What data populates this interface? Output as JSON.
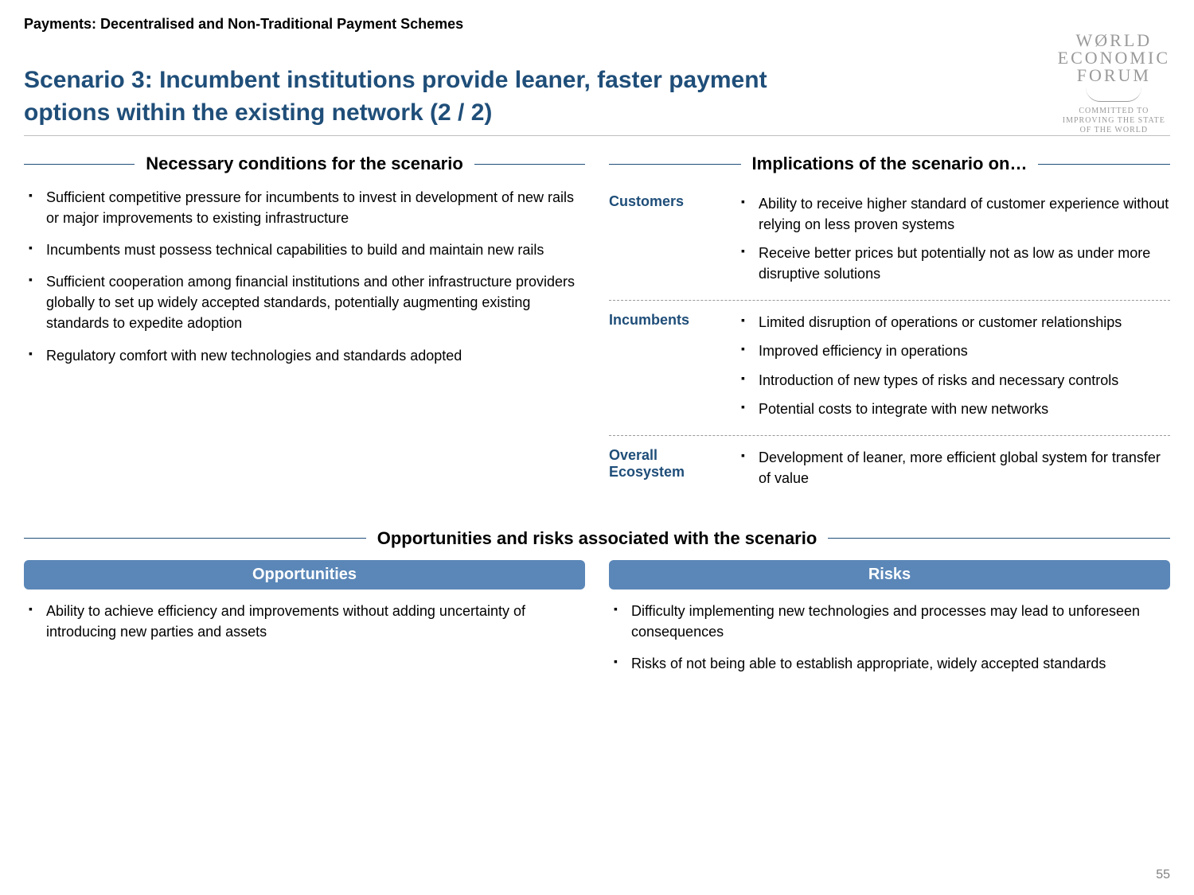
{
  "header": {
    "strip": "Payments: Decentralised and Non-Traditional Payment Schemes",
    "title": "Scenario 3: Incumbent institutions provide leaner, faster payment options within the existing network (2 / 2)"
  },
  "logo": {
    "line1": "WØRLD",
    "line2": "ECONOMIC",
    "line3": "FORUM",
    "tag1": "COMMITTED TO",
    "tag2": "IMPROVING THE STATE",
    "tag3": "OF THE WORLD"
  },
  "conditions": {
    "heading": "Necessary conditions for the scenario",
    "items": [
      "Sufficient competitive pressure for incumbents to invest in development of new rails or major improvements to existing infrastructure",
      "Incumbents must possess technical capabilities to build and maintain new rails",
      "Sufficient cooperation among financial institutions and other infrastructure providers globally to set up widely accepted standards, potentially augmenting existing standards to expedite adoption",
      "Regulatory comfort with new technologies and standards adopted"
    ]
  },
  "implications": {
    "heading": "Implications of the scenario on…",
    "groups": [
      {
        "label": "Customers",
        "items": [
          "Ability to receive higher standard of customer experience without relying on less proven systems",
          "Receive better prices but potentially not as low as under more disruptive solutions"
        ]
      },
      {
        "label": "Incumbents",
        "items": [
          "Limited disruption of operations or customer relationships",
          "Improved efficiency in operations",
          "Introduction of new types of risks and necessary controls",
          "Potential costs to integrate with new networks"
        ]
      },
      {
        "label": "Overall Ecosystem",
        "items": [
          "Development of leaner, more efficient global system for transfer of value"
        ]
      }
    ]
  },
  "opprisk": {
    "heading": "Opportunities and risks associated with the scenario",
    "opportunities": {
      "label": "Opportunities",
      "items": [
        "Ability to achieve efficiency and improvements without adding uncertainty of introducing new parties and assets"
      ]
    },
    "risks": {
      "label": "Risks",
      "items": [
        "Difficulty implementing new technologies and processes may lead to unforeseen consequences",
        "Risks of not being able to establish appropriate, widely accepted standards"
      ]
    }
  },
  "page_number": "55",
  "colors": {
    "title": "#1f4e79",
    "pill_bg": "#5b87b8",
    "logo_gray": "#9a9a9a",
    "rule_gray": "#bfbfbf"
  }
}
